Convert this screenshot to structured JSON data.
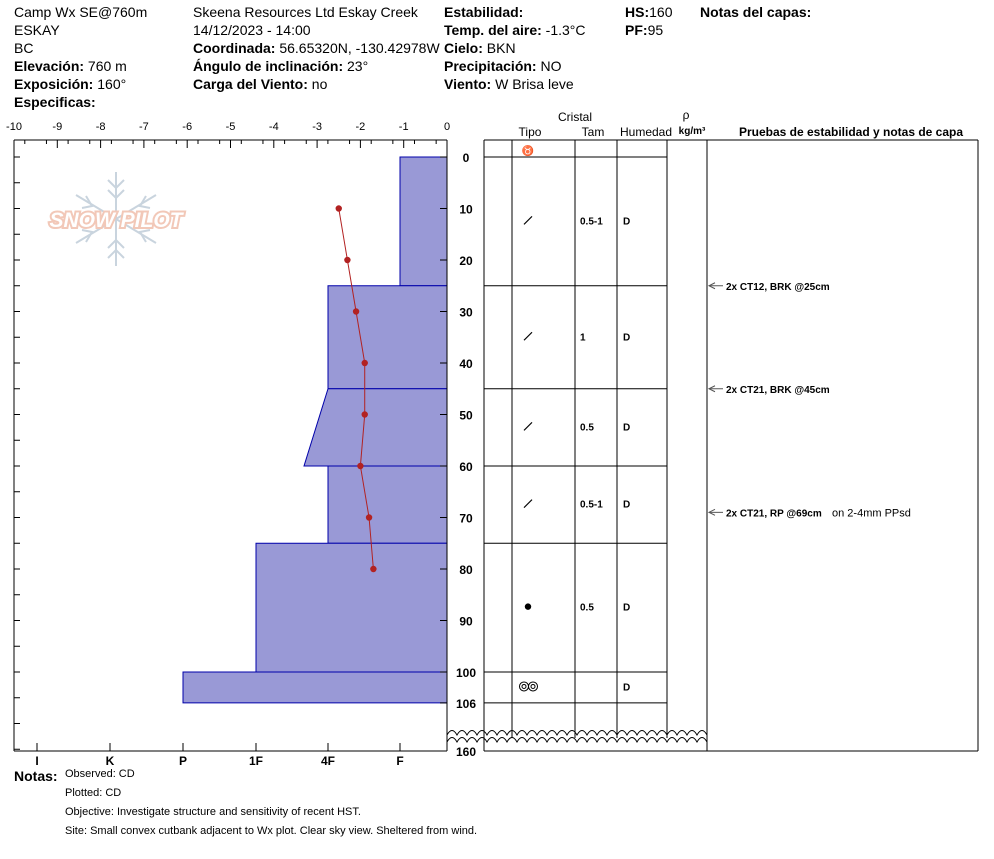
{
  "header": {
    "col1": [
      "Camp Wx SE@760m",
      "ESKAY",
      "BC"
    ],
    "elevation_label": "Elevación:",
    "elevation": "760 m",
    "aspect_label": "Exposición:",
    "aspect": "160°",
    "specifics_label": "Especificas:",
    "operation": "Skeena Resources Ltd Eskay Creek",
    "datetime": "14/12/2023 - 14:00",
    "coord_label": "Coordinada:",
    "coord": "56.65320N, -130.42978W",
    "incline_label": "Ángulo de inclinación:",
    "incline": "23°",
    "windload_label": "Carga del Viento:",
    "windload": "no",
    "stability_label": "Estabilidad:",
    "airtemp_label": "Temp. del aire:",
    "airtemp": "-1.3°C",
    "sky_label": "Cielo:",
    "sky": "BKN",
    "precip_label": "Precipitación:",
    "precip": "NO",
    "wind_label": "Viento:",
    "wind": "W Brisa leve",
    "hs_label": "HS:",
    "hs": "160",
    "pf_label": "PF:",
    "pf": "95",
    "layer_notes_label": "Notas del capas:"
  },
  "logo": {
    "text": "SNOW PILOT"
  },
  "columns": {
    "crystal": "Cristal",
    "type": "Tipo",
    "size": "Tam",
    "moisture": "Humedad",
    "rho": "ρ",
    "density_unit": "kg/m³",
    "tests": "Pruebas de estabilidad y notas de capa"
  },
  "notes": {
    "label": "Notas:",
    "lines": [
      "Observed: CD",
      "Plotted: CD",
      "Objective: Investigate structure and sensitivity of recent HST.",
      "Site: Small convex cutbank adjacent to Wx plot. Clear sky view. Sheltered from wind."
    ]
  },
  "colors": {
    "hardness_fill": "#9999d6",
    "hardness_stroke": "#0000aa",
    "temp_line": "#b22222"
  },
  "chart_data": {
    "type": "area",
    "title": "",
    "temperature_axis": {
      "label": "",
      "range": [
        -10,
        0
      ],
      "ticks": [
        "-10",
        "-9",
        "-8",
        "-7",
        "-6",
        "-5",
        "-4",
        "-3",
        "-2",
        "-1",
        "0"
      ]
    },
    "depth_axis": {
      "range": [
        0,
        106
      ],
      "ticks": [
        "0",
        "10",
        "20",
        "30",
        "40",
        "50",
        "60",
        "70",
        "80",
        "90",
        "100",
        "106"
      ],
      "bottom_label": "160"
    },
    "hardness_axis": {
      "ticks": [
        "I",
        "K",
        "P",
        "1F",
        "4F",
        "F"
      ]
    },
    "temperature_profile": {
      "depth": [
        10,
        20,
        30,
        40,
        50,
        60,
        70,
        80
      ],
      "temp": [
        -2.5,
        -2.3,
        -2.1,
        -1.9,
        -1.9,
        -2.0,
        -1.8,
        -1.7
      ]
    },
    "layers": [
      {
        "top": 0,
        "bottom": 25,
        "hardness_top": "F",
        "hardness_bottom": "F",
        "grain": "precip",
        "size": "0.5-1",
        "moisture": "D"
      },
      {
        "top": 25,
        "bottom": 45,
        "hardness_top": "4F",
        "hardness_bottom": "4F",
        "grain": "precip",
        "size": "1",
        "moisture": "D"
      },
      {
        "top": 45,
        "bottom": 60,
        "hardness_top": "4F",
        "hardness_bottom": "4F-",
        "grain": "precip",
        "size": "0.5",
        "moisture": "D"
      },
      {
        "top": 60,
        "bottom": 75,
        "hardness_top": "4F",
        "hardness_bottom": "4F",
        "grain": "precip",
        "size": "0.5-1",
        "moisture": "D"
      },
      {
        "top": 75,
        "bottom": 100,
        "hardness_top": "1F",
        "hardness_bottom": "1F",
        "grain": "round",
        "size": "0.5",
        "moisture": "D"
      },
      {
        "top": 100,
        "bottom": 106,
        "hardness_top": "P",
        "hardness_bottom": "P",
        "grain": "melt-freeze",
        "size": "",
        "moisture": "D"
      }
    ],
    "stability_tests": [
      {
        "depth": 25,
        "text": "2x CT12, BRK @25cm",
        "comment": ""
      },
      {
        "depth": 45,
        "text": "2x CT21, BRK @45cm",
        "comment": ""
      },
      {
        "depth": 69,
        "text": "2x CT21, RP @69cm",
        "comment": "on 2-4mm PPsd"
      }
    ]
  }
}
